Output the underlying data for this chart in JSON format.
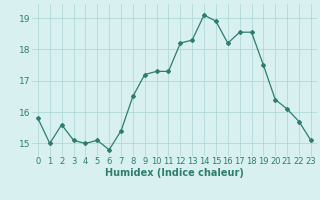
{
  "x": [
    0,
    1,
    2,
    3,
    4,
    5,
    6,
    7,
    8,
    9,
    10,
    11,
    12,
    13,
    14,
    15,
    16,
    17,
    18,
    19,
    20,
    21,
    22,
    23
  ],
  "y": [
    15.8,
    15.0,
    15.6,
    15.1,
    15.0,
    15.1,
    14.8,
    15.4,
    16.5,
    17.2,
    17.3,
    17.3,
    18.2,
    18.3,
    19.1,
    18.9,
    18.2,
    18.55,
    18.55,
    17.5,
    16.4,
    16.1,
    15.7,
    15.1
  ],
  "xlabel": "Humidex (Indice chaleur)",
  "line_color": "#2e7d6e",
  "marker": "D",
  "marker_size": 2.0,
  "linewidth": 0.9,
  "bg_color": "#d8f0f0",
  "grid_color": "#a8d4d4",
  "label_color": "#2e7d6e",
  "ylim": [
    14.6,
    19.45
  ],
  "yticks": [
    15,
    16,
    17,
    18,
    19
  ],
  "xticks": [
    0,
    1,
    2,
    3,
    4,
    5,
    6,
    7,
    8,
    9,
    10,
    11,
    12,
    13,
    14,
    15,
    16,
    17,
    18,
    19,
    20,
    21,
    22,
    23
  ],
  "tick_fontsize": 6.0,
  "xlabel_fontsize": 7.0,
  "ytick_fontsize": 6.5
}
